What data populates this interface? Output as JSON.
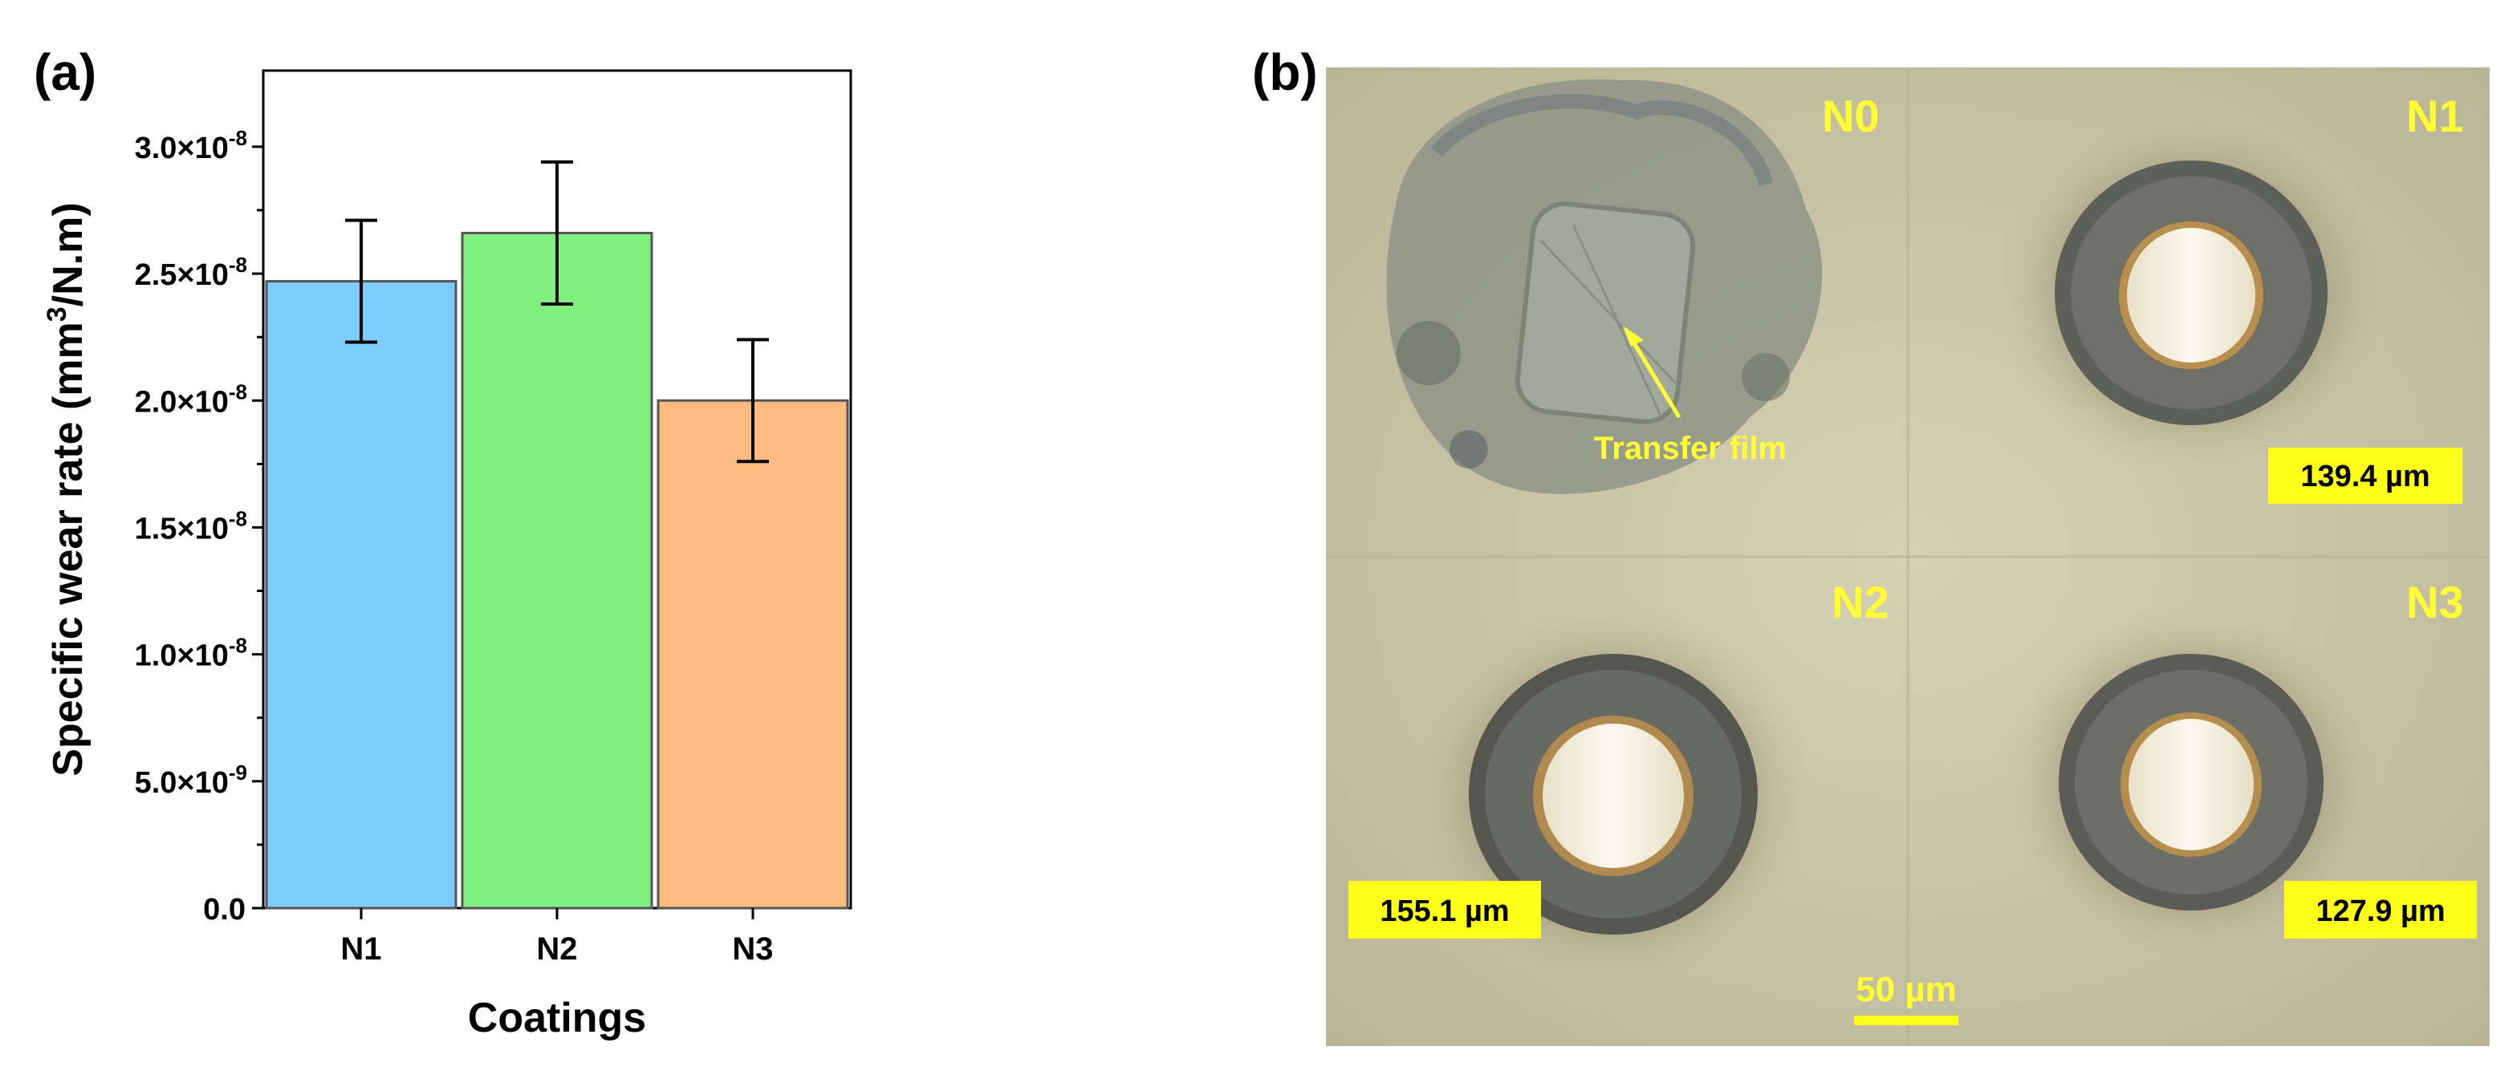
{
  "panel_a": {
    "label": "(a)",
    "chart_data": {
      "type": "bar",
      "categories": [
        "N1",
        "N2",
        "N3"
      ],
      "values": [
        2.47e-08,
        2.66e-08,
        2e-08
      ],
      "errors": [
        2.4e-09,
        2.8e-09,
        2.4e-09
      ],
      "bar_colors": [
        "#7dcbff",
        "#7ef07e",
        "#fdbb80"
      ],
      "title": "",
      "xlabel": "Coatings",
      "ylabel_parts": [
        "Specific wear rate (mm",
        "3",
        "/N.m)"
      ],
      "ylim": [
        0,
        3.3e-08
      ],
      "yticks": [
        0,
        5e-09,
        1e-08,
        1.5e-08,
        2e-08,
        2.5e-08,
        3e-08
      ],
      "ytick_labels": [
        {
          "mant": "0.0",
          "exp": ""
        },
        {
          "mant": "5.0×10",
          "exp": "-9"
        },
        {
          "mant": "1.0×10",
          "exp": "-8"
        },
        {
          "mant": "1.5×10",
          "exp": "-8"
        },
        {
          "mant": "2.0×10",
          "exp": "-8"
        },
        {
          "mant": "2.5×10",
          "exp": "-8"
        },
        {
          "mant": "3.0×10",
          "exp": "-8"
        }
      ],
      "grid": false
    }
  },
  "panel_b": {
    "label": "(b)",
    "quadrants": [
      {
        "name": "N0",
        "annotation": "Transfer film"
      },
      {
        "name": "N1",
        "measurement": "139.4 µm"
      },
      {
        "name": "N2",
        "measurement": "155.1 µm"
      },
      {
        "name": "N3",
        "measurement": "127.9 µm"
      }
    ],
    "scale_bar": "50 µm",
    "colors": {
      "label_yellow": "#ffff33",
      "box_yellow": "#ffff1a",
      "surface": "#c9c3a4"
    }
  }
}
